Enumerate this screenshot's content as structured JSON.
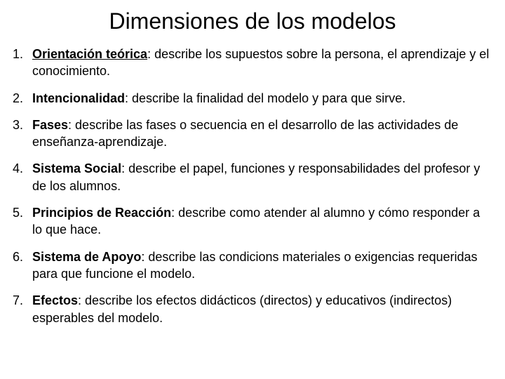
{
  "title": {
    "text": "Dimensiones de los modelos",
    "fontsize": 32,
    "color": "#000000"
  },
  "list": {
    "fontsize": 18,
    "color": "#000000",
    "items": [
      {
        "term": "Orientación teórica",
        "desc": ": describe los supuestos sobre la persona, el aprendizaje y el conocimiento."
      },
      {
        "term": "Intencionalidad",
        "desc": ": describe la finalidad del modelo y para que sirve."
      },
      {
        "term": "Fases",
        "desc": ": describe las fases o secuencia en el desarrollo de las actividades de enseñanza-aprendizaje."
      },
      {
        "term": "Sistema Social",
        "desc": ": describe el papel, funciones y responsabilidades del profesor y de los alumnos."
      },
      {
        "term": "Principios de Reacción",
        "desc": ": describe como atender al alumno y cómo responder a lo que hace."
      },
      {
        "term": "Sistema de Apoyo",
        "desc": ": describe las condicions materiales o exigencias requeridas para que funcione el modelo."
      },
      {
        "term": "Efectos",
        "desc": ": describe los efectos didácticos (directos) y educativos (indirectos) esperables del modelo."
      }
    ]
  },
  "background_color": "#ffffff"
}
